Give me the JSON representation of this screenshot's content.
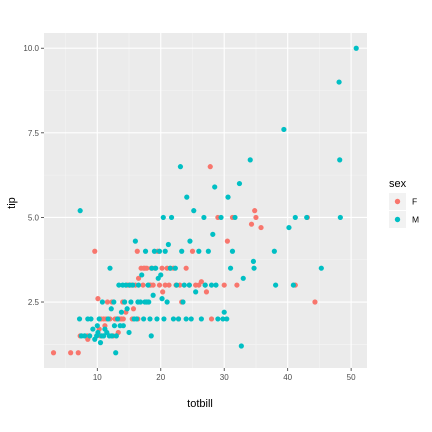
{
  "chart_data": {
    "type": "scatter",
    "xlabel": "totbill",
    "ylabel": "tip",
    "xlim": [
      1.6,
      52.5
    ],
    "ylim": [
      0.55,
      10.45
    ],
    "x_ticks": [
      10,
      20,
      30,
      40,
      50
    ],
    "y_ticks": [
      2.5,
      5.0,
      7.5,
      10.0
    ],
    "x_tick_labels": [
      "10",
      "20",
      "30",
      "40",
      "50"
    ],
    "y_tick_labels": [
      "2.5",
      "5.0",
      "7.5",
      "10.0"
    ],
    "grid": true,
    "legend_title": "sex",
    "legend_position": "right",
    "series": [
      {
        "name": "F",
        "color": "#F8766D",
        "points": [
          [
            3.1,
            1.0
          ],
          [
            5.8,
            1.0
          ],
          [
            7.0,
            1.0
          ],
          [
            7.3,
            1.5
          ],
          [
            8.4,
            1.5
          ],
          [
            8.5,
            1.4
          ],
          [
            9.6,
            4.0
          ],
          [
            10.1,
            2.6
          ],
          [
            10.3,
            1.7
          ],
          [
            10.5,
            1.5
          ],
          [
            10.6,
            2.0
          ],
          [
            11.0,
            2.0
          ],
          [
            11.2,
            1.8
          ],
          [
            11.4,
            2.0
          ],
          [
            11.6,
            2.5
          ],
          [
            12.0,
            2.0
          ],
          [
            12.3,
            2.5
          ],
          [
            12.5,
            1.5
          ],
          [
            12.8,
            2.0
          ],
          [
            13.0,
            2.0
          ],
          [
            13.3,
            1.6
          ],
          [
            13.4,
            2.0
          ],
          [
            13.5,
            2.0
          ],
          [
            13.8,
            2.0
          ],
          [
            14.0,
            2.5
          ],
          [
            14.1,
            2.0
          ],
          [
            14.3,
            2.5
          ],
          [
            14.5,
            2.2
          ],
          [
            14.7,
            3.0
          ],
          [
            15.0,
            3.0
          ],
          [
            15.4,
            3.0
          ],
          [
            15.5,
            2.0
          ],
          [
            15.7,
            2.3
          ],
          [
            16.0,
            3.0
          ],
          [
            16.3,
            4.0
          ],
          [
            16.4,
            2.0
          ],
          [
            16.5,
            3.2
          ],
          [
            16.9,
            3.5
          ],
          [
            17.2,
            3.0
          ],
          [
            17.3,
            3.5
          ],
          [
            17.5,
            3.5
          ],
          [
            17.8,
            3.5
          ],
          [
            18.2,
            3.0
          ],
          [
            18.4,
            3.0
          ],
          [
            18.5,
            3.5
          ],
          [
            18.8,
            3.0
          ],
          [
            19.1,
            3.5
          ],
          [
            19.5,
            4.0
          ],
          [
            19.8,
            3.0
          ],
          [
            20.2,
            3.5
          ],
          [
            20.3,
            2.8
          ],
          [
            20.7,
            3.0
          ],
          [
            21.0,
            3.5
          ],
          [
            21.3,
            3.0
          ],
          [
            21.5,
            3.5
          ],
          [
            22.0,
            3.5
          ],
          [
            22.4,
            3.0
          ],
          [
            22.8,
            2.0
          ],
          [
            23.0,
            3.0
          ],
          [
            23.3,
            2.5
          ],
          [
            24.0,
            3.5
          ],
          [
            24.5,
            3.0
          ],
          [
            25.0,
            4.0
          ],
          [
            25.5,
            3.0
          ],
          [
            26.0,
            3.0
          ],
          [
            26.4,
            3.1
          ],
          [
            27.0,
            3.0
          ],
          [
            27.2,
            2.8
          ],
          [
            27.8,
            6.5
          ],
          [
            28.0,
            2.0
          ],
          [
            29.0,
            5.0
          ],
          [
            30.0,
            3.0
          ],
          [
            30.5,
            4.3
          ],
          [
            31.3,
            5.0
          ],
          [
            32.0,
            3.0
          ],
          [
            34.3,
            4.8
          ],
          [
            34.8,
            5.2
          ],
          [
            35.0,
            5.0
          ],
          [
            35.8,
            4.7
          ],
          [
            41.2,
            3.0
          ],
          [
            43.1,
            5.0
          ],
          [
            44.3,
            2.5
          ]
        ]
      },
      {
        "name": "M",
        "color": "#00BFC4",
        "points": [
          [
            7.2,
            2.0
          ],
          [
            7.3,
            5.2
          ],
          [
            7.5,
            1.5
          ],
          [
            8.0,
            1.5
          ],
          [
            8.5,
            2.0
          ],
          [
            8.8,
            1.5
          ],
          [
            9.0,
            2.0
          ],
          [
            9.3,
            1.7
          ],
          [
            9.6,
            1.4
          ],
          [
            9.9,
            1.5
          ],
          [
            10.0,
            1.8
          ],
          [
            10.1,
            1.6
          ],
          [
            10.3,
            2.0
          ],
          [
            10.5,
            1.3
          ],
          [
            10.7,
            1.5
          ],
          [
            10.8,
            2.5
          ],
          [
            11.0,
            1.5
          ],
          [
            11.2,
            1.7
          ],
          [
            11.5,
            1.6
          ],
          [
            11.7,
            2.0
          ],
          [
            11.9,
            1.5
          ],
          [
            12.0,
            3.5
          ],
          [
            12.2,
            2.3
          ],
          [
            12.3,
            1.5
          ],
          [
            12.6,
            2.5
          ],
          [
            12.7,
            1.8
          ],
          [
            12.9,
            1.0
          ],
          [
            13.0,
            1.5
          ],
          [
            13.2,
            2.0
          ],
          [
            13.4,
            3.0
          ],
          [
            13.6,
            1.8
          ],
          [
            13.8,
            2.2
          ],
          [
            14.0,
            3.0
          ],
          [
            14.1,
            1.8
          ],
          [
            14.3,
            2.5
          ],
          [
            14.5,
            3.0
          ],
          [
            14.7,
            2.3
          ],
          [
            15.0,
            1.6
          ],
          [
            15.1,
            3.0
          ],
          [
            15.3,
            2.5
          ],
          [
            15.6,
            3.0
          ],
          [
            15.8,
            2.0
          ],
          [
            16.0,
            4.3
          ],
          [
            16.2,
            2.0
          ],
          [
            16.4,
            2.5
          ],
          [
            16.5,
            3.0
          ],
          [
            16.8,
            2.5
          ],
          [
            17.0,
            3.3
          ],
          [
            17.3,
            2.0
          ],
          [
            17.5,
            2.5
          ],
          [
            17.6,
            4.0
          ],
          [
            17.8,
            2.5
          ],
          [
            18.0,
            3.0
          ],
          [
            18.1,
            2.5
          ],
          [
            18.3,
            2.0
          ],
          [
            18.5,
            1.5
          ],
          [
            18.6,
            3.5
          ],
          [
            18.8,
            2.7
          ],
          [
            19.0,
            4.0
          ],
          [
            19.2,
            3.5
          ],
          [
            19.4,
            2.0
          ],
          [
            19.6,
            3.2
          ],
          [
            19.8,
            4.0
          ],
          [
            20.0,
            3.3
          ],
          [
            20.2,
            2.6
          ],
          [
            20.4,
            5.0
          ],
          [
            20.5,
            2.0
          ],
          [
            20.7,
            4.0
          ],
          [
            21.0,
            2.5
          ],
          [
            21.2,
            4.2
          ],
          [
            21.5,
            3.5
          ],
          [
            21.7,
            5.0
          ],
          [
            22.0,
            2.0
          ],
          [
            22.3,
            3.5
          ],
          [
            22.5,
            3.0
          ],
          [
            22.8,
            2.0
          ],
          [
            23.1,
            6.5
          ],
          [
            23.3,
            4.0
          ],
          [
            23.5,
            2.5
          ],
          [
            23.7,
            3.0
          ],
          [
            24.0,
            2.0
          ],
          [
            24.1,
            5.6
          ],
          [
            24.5,
            3.0
          ],
          [
            24.6,
            4.3
          ],
          [
            24.8,
            2.0
          ],
          [
            25.2,
            5.2
          ],
          [
            25.5,
            2.8
          ],
          [
            26.0,
            4.0
          ],
          [
            26.4,
            2.0
          ],
          [
            26.8,
            5.0
          ],
          [
            27.0,
            3.0
          ],
          [
            27.5,
            4.0
          ],
          [
            28.0,
            3.0
          ],
          [
            28.2,
            4.5
          ],
          [
            28.5,
            5.9
          ],
          [
            28.7,
            3.0
          ],
          [
            29.0,
            2.0
          ],
          [
            29.5,
            5.0
          ],
          [
            29.8,
            2.0
          ],
          [
            30.0,
            2.2
          ],
          [
            30.4,
            2.0
          ],
          [
            30.6,
            5.6
          ],
          [
            31.0,
            3.5
          ],
          [
            31.3,
            4.0
          ],
          [
            31.7,
            5.0
          ],
          [
            32.4,
            6.0
          ],
          [
            32.7,
            1.2
          ],
          [
            33.0,
            3.2
          ],
          [
            34.1,
            6.7
          ],
          [
            34.6,
            3.7
          ],
          [
            34.7,
            3.5
          ],
          [
            37.9,
            4.0
          ],
          [
            38.1,
            3.0
          ],
          [
            39.4,
            7.6
          ],
          [
            40.2,
            4.7
          ],
          [
            40.9,
            3.0
          ],
          [
            41.2,
            5.0
          ],
          [
            43.0,
            5.0
          ],
          [
            45.3,
            3.5
          ],
          [
            48.1,
            9.0
          ],
          [
            48.2,
            6.7
          ],
          [
            48.3,
            5.0
          ],
          [
            50.8,
            10.0
          ]
        ]
      }
    ]
  }
}
